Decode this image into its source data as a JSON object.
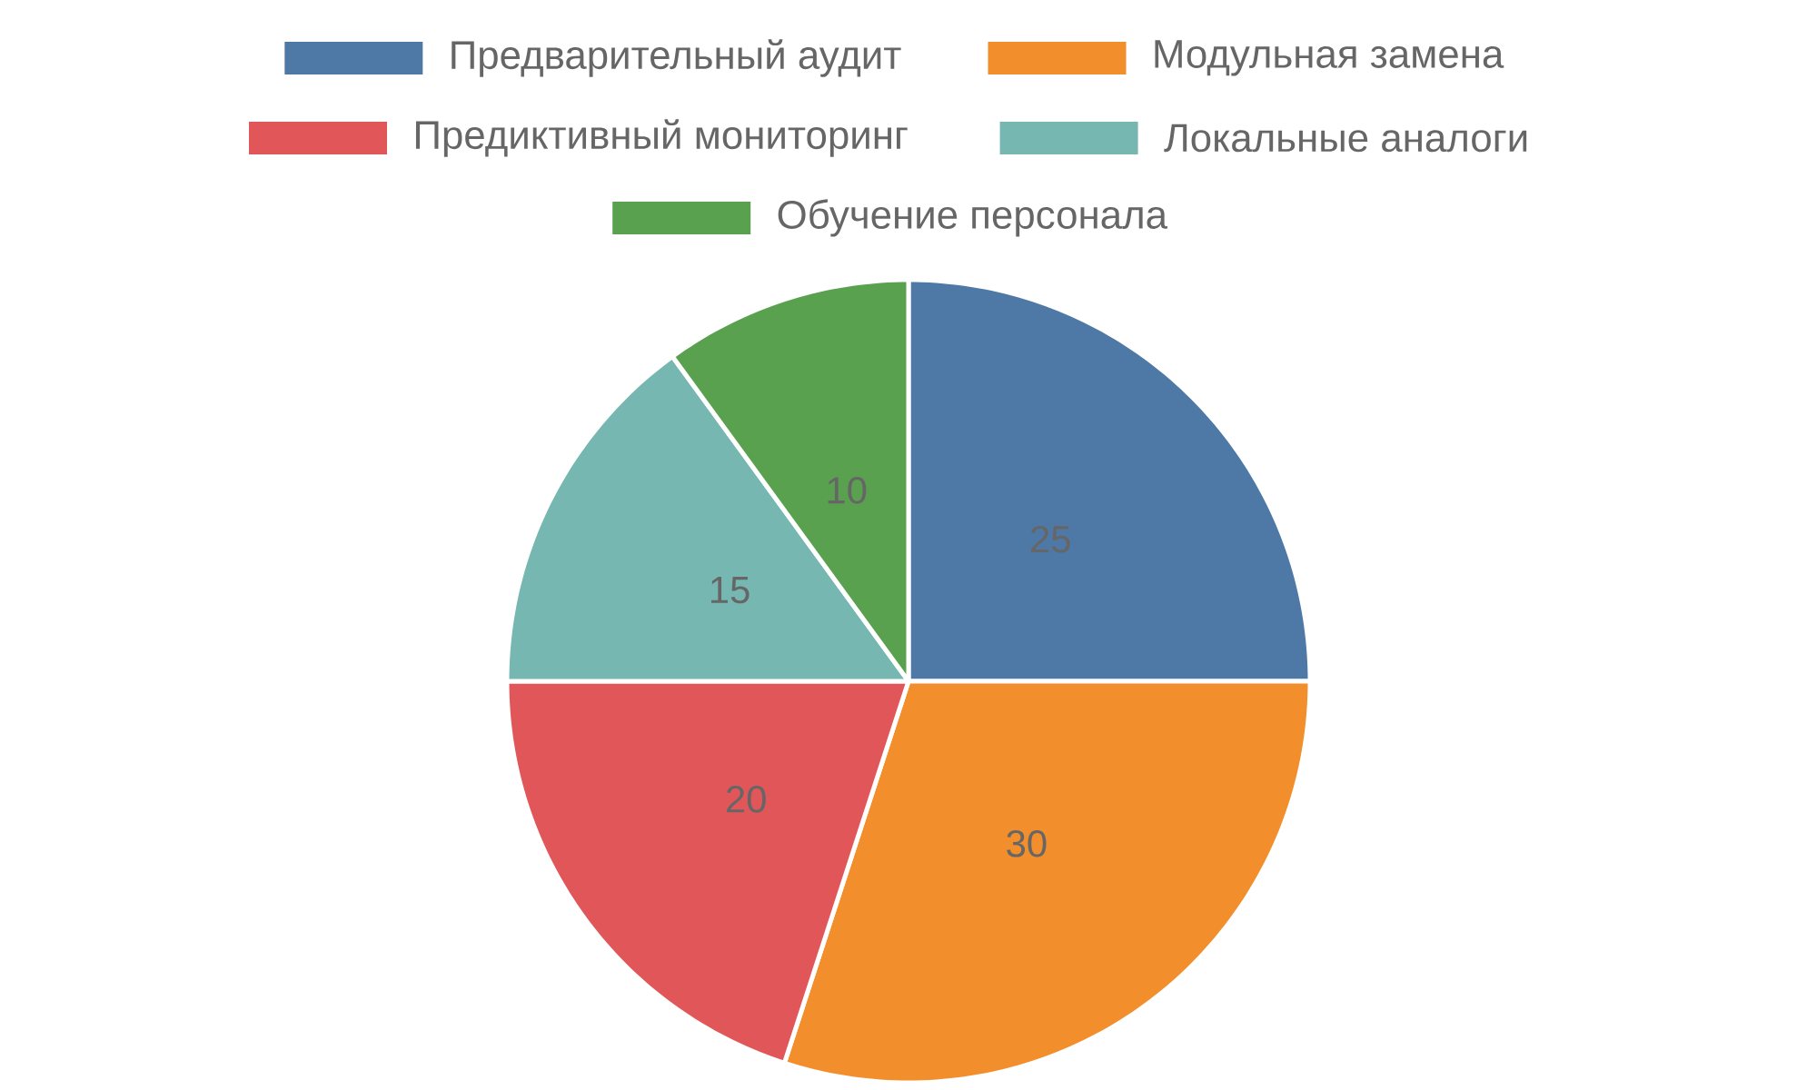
{
  "chart_data": {
    "type": "pie",
    "categories": [
      "Предварительный аудит",
      "Модульная замена",
      "Предиктивный мониторинг",
      "Локальные аналоги",
      "Обучение персонала"
    ],
    "values": [
      25,
      30,
      20,
      15,
      10
    ],
    "colors": [
      "#4e79a7",
      "#f28e2b",
      "#e15759",
      "#76b7b2",
      "#59a14f"
    ],
    "data_labels": true,
    "legend": "top"
  }
}
